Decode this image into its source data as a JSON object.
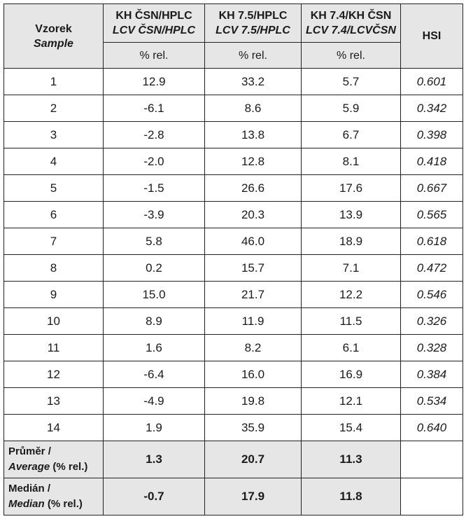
{
  "header": {
    "sample": "Vzorek",
    "sample_en": "Sample",
    "columns": [
      {
        "cz": "KH ČSN/HPLC",
        "en": "LCV ČSN/HPLC",
        "unit": "% rel."
      },
      {
        "cz": "KH 7.5/HPLC",
        "en": "LCV 7.5/HPLC",
        "unit": "% rel."
      },
      {
        "cz": "KH 7.4/KH ČSN",
        "en": "LCV 7.4/LCVČSN",
        "unit": "% rel."
      }
    ],
    "hsi": "HSI"
  },
  "rows": [
    [
      "1",
      "12.9",
      "33.2",
      "5.7",
      "0.601"
    ],
    [
      "2",
      "-6.1",
      "8.6",
      "5.9",
      "0.342"
    ],
    [
      "3",
      "-2.8",
      "13.8",
      "6.7",
      "0.398"
    ],
    [
      "4",
      "-2.0",
      "12.8",
      "8.1",
      "0.418"
    ],
    [
      "5",
      "-1.5",
      "26.6",
      "17.6",
      "0.667"
    ],
    [
      "6",
      "-3.9",
      "20.3",
      "13.9",
      "0.565"
    ],
    [
      "7",
      "5.8",
      "46.0",
      "18.9",
      "0.618"
    ],
    [
      "8",
      "0.2",
      "15.7",
      "7.1",
      "0.472"
    ],
    [
      "9",
      "15.0",
      "21.7",
      "12.2",
      "0.546"
    ],
    [
      "10",
      "8.9",
      "11.9",
      "11.5",
      "0.326"
    ],
    [
      "11",
      "1.6",
      "8.2",
      "6.1",
      "0.328"
    ],
    [
      "12",
      "-6.4",
      "16.0",
      "16.9",
      "0.384"
    ],
    [
      "13",
      "-4.9",
      "19.8",
      "12.1",
      "0.534"
    ],
    [
      "14",
      "1.9",
      "35.9",
      "15.4",
      "0.640"
    ]
  ],
  "summary": [
    {
      "label": "Průměr /",
      "label_en": "Average",
      "unit": "(% rel.)",
      "values": [
        "1.3",
        "20.7",
        "11.3"
      ]
    },
    {
      "label": "Medián /",
      "label_en": "Median",
      "unit": "(% rel.)",
      "values": [
        "-0.7",
        "17.9",
        "11.8"
      ]
    }
  ]
}
